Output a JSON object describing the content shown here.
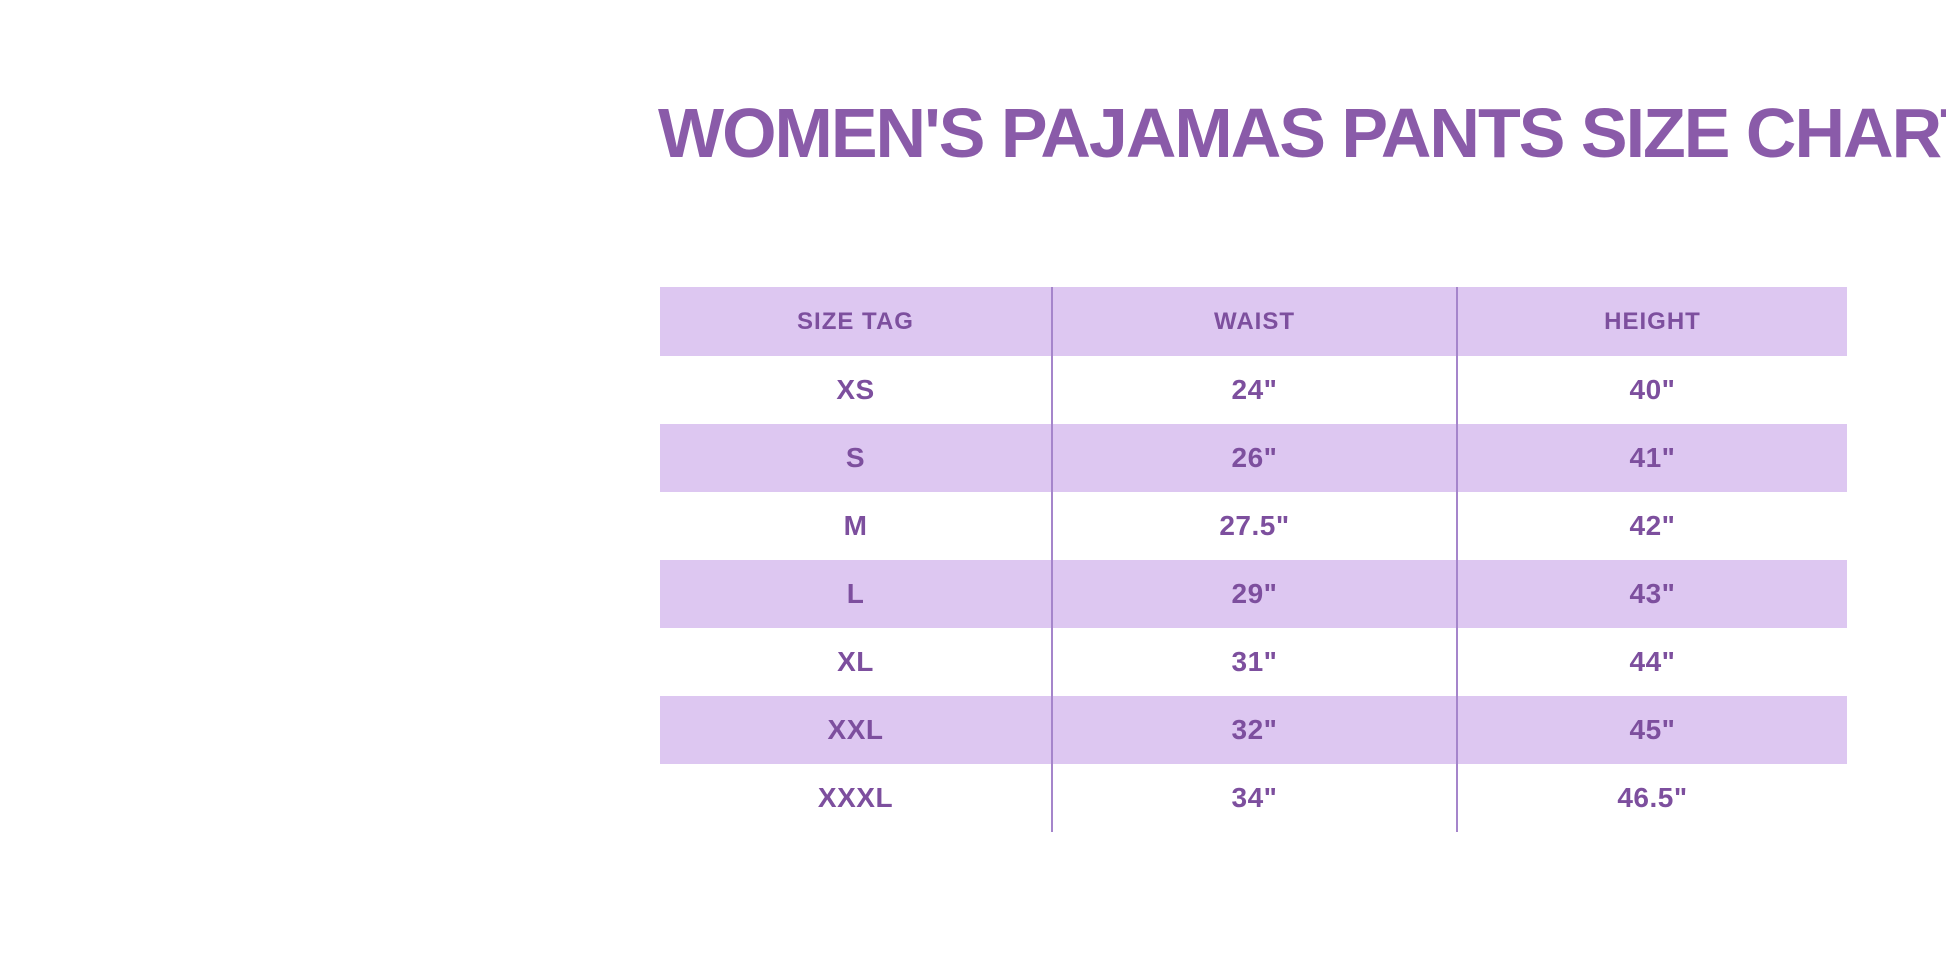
{
  "title": "WOMEN'S PAJAMAS PANTS SIZE CHART",
  "colors": {
    "background": "#ffffff",
    "title_text": "#8a5ba9",
    "table_text": "#7d4f9e",
    "stripe": "#ddc7f1",
    "divider": "#a585cb"
  },
  "chart_data": {
    "type": "table",
    "title": "WOMEN'S PAJAMAS PANTS SIZE CHART",
    "columns": [
      "SIZE TAG",
      "WAIST",
      "HEIGHT"
    ],
    "rows": [
      [
        "XS",
        "24\"",
        "40\""
      ],
      [
        "S",
        "26\"",
        "41\""
      ],
      [
        "M",
        "27.5\"",
        "42\""
      ],
      [
        "L",
        "29\"",
        "43\""
      ],
      [
        "XL",
        "31\"",
        "44\""
      ],
      [
        "XXL",
        "32\"",
        "45\""
      ],
      [
        "XXXL",
        "34\"",
        "46.5\""
      ]
    ]
  }
}
